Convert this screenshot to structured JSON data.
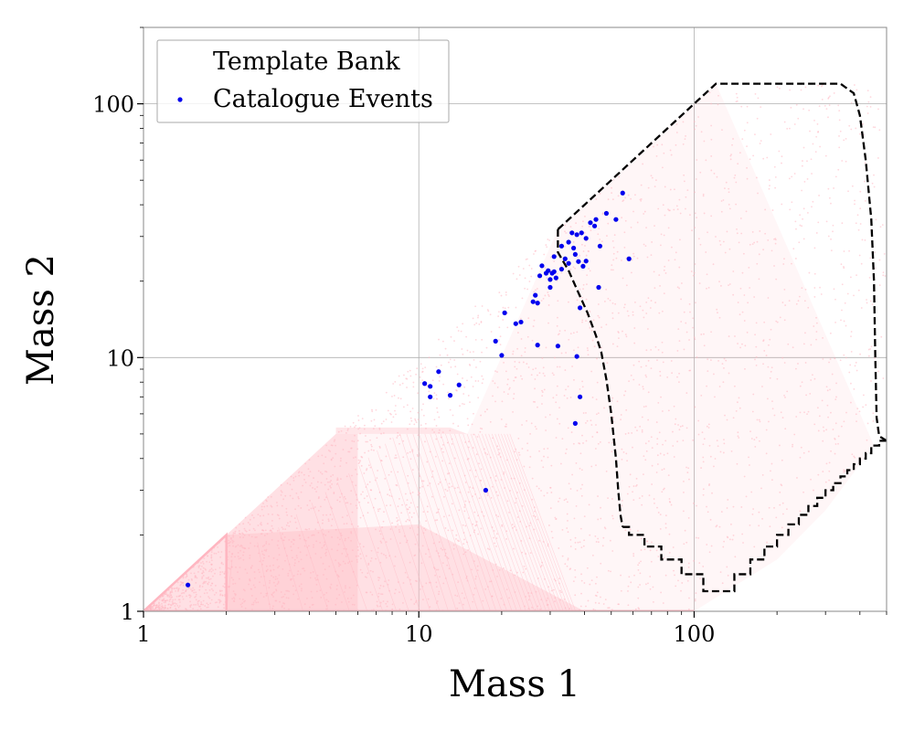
{
  "chart_data": {
    "type": "scatter",
    "xlabel": "Mass 1",
    "ylabel": "Mass 2",
    "xscale": "log",
    "yscale": "log",
    "xlim": [
      1,
      500
    ],
    "ylim": [
      1,
      200
    ],
    "xticks": [
      1,
      10,
      100
    ],
    "yticks": [
      1,
      10,
      100
    ],
    "xtick_labels": [
      "1",
      "10",
      "100"
    ],
    "ytick_labels": [
      "1",
      "10",
      "100"
    ],
    "grid": true,
    "legend_position": "top-left",
    "colors": {
      "template_bank": "#ffb6c1",
      "catalogue_events": "#0000ee",
      "boundary": "#000000"
    },
    "series": [
      {
        "name": "Template Bank",
        "style": "dense-scatter",
        "color": "#ffb6c1",
        "region_polygon": [
          [
            1,
            1
          ],
          [
            5,
            5
          ],
          [
            15,
            5
          ],
          [
            32,
            32
          ],
          [
            120,
            120
          ],
          [
            450,
            4.5
          ],
          [
            300,
            2.5
          ],
          [
            200,
            1.6
          ],
          [
            100,
            1
          ]
        ]
      },
      {
        "name": "Catalogue Events",
        "style": "points",
        "color": "#0000ee",
        "points": [
          [
            1.45,
            1.27
          ],
          [
            10.5,
            7.9
          ],
          [
            11,
            7.7
          ],
          [
            11,
            7.0
          ],
          [
            11.8,
            8.8
          ],
          [
            13,
            7.1
          ],
          [
            14,
            7.8
          ],
          [
            17.5,
            3.0
          ],
          [
            19,
            11.6
          ],
          [
            20,
            10.2
          ],
          [
            20.5,
            15.0
          ],
          [
            22.5,
            13.6
          ],
          [
            23.5,
            13.8
          ],
          [
            26,
            16.6
          ],
          [
            26.5,
            17.6
          ],
          [
            27,
            11.2
          ],
          [
            27,
            16.4
          ],
          [
            27.5,
            21
          ],
          [
            28,
            23
          ],
          [
            29,
            21.5
          ],
          [
            29.5,
            22
          ],
          [
            30,
            18.9
          ],
          [
            30,
            20.3
          ],
          [
            30.5,
            21.5
          ],
          [
            31,
            25
          ],
          [
            31,
            21.8
          ],
          [
            31.5,
            20.6
          ],
          [
            32,
            11.1
          ],
          [
            33,
            27.5
          ],
          [
            33,
            22.3
          ],
          [
            34,
            24.5
          ],
          [
            35,
            28.5
          ],
          [
            35,
            23.5
          ],
          [
            36,
            31
          ],
          [
            36.5,
            27
          ],
          [
            37,
            25.5
          ],
          [
            37,
            5.5
          ],
          [
            37.5,
            30.5
          ],
          [
            37.5,
            10.1
          ],
          [
            38,
            23.9
          ],
          [
            38.5,
            15.7
          ],
          [
            38.5,
            7.0
          ],
          [
            39,
            31
          ],
          [
            39.5,
            22.9
          ],
          [
            40.5,
            29.5
          ],
          [
            40.5,
            24
          ],
          [
            42,
            34
          ],
          [
            43.5,
            33
          ],
          [
            44,
            35
          ],
          [
            45,
            18.9
          ],
          [
            45.5,
            27.5
          ],
          [
            48,
            37
          ],
          [
            52,
            35
          ],
          [
            55,
            44.5
          ],
          [
            58,
            24.5
          ]
        ]
      },
      {
        "name": "",
        "style": "dashed-boundary",
        "color": "#000000",
        "outer": [
          [
            32,
            32
          ],
          [
            120,
            120
          ],
          [
            340,
            120
          ],
          [
            380,
            110
          ],
          [
            400,
            90
          ],
          [
            420,
            60
          ],
          [
            440,
            35
          ],
          [
            450,
            20
          ],
          [
            455,
            10
          ],
          [
            460,
            5.8
          ],
          [
            470,
            4.9
          ],
          [
            500,
            4.7
          ]
        ],
        "inner": [
          [
            32,
            32
          ],
          [
            32,
            26
          ],
          [
            35,
            22
          ],
          [
            38,
            18
          ],
          [
            41,
            15
          ],
          [
            44,
            12.2
          ],
          [
            46,
            10.5
          ],
          [
            48,
            8.2
          ],
          [
            50,
            6.0
          ],
          [
            52,
            4.0
          ],
          [
            53,
            3.0
          ],
          [
            54,
            2.4
          ],
          [
            55,
            2.15
          ]
        ],
        "stairs_lower": [
          [
            55,
            2.15
          ],
          [
            58,
            2.15
          ],
          [
            58,
            2.0
          ],
          [
            66,
            2.0
          ],
          [
            66,
            1.8
          ],
          [
            76,
            1.8
          ],
          [
            76,
            1.6
          ],
          [
            90,
            1.6
          ],
          [
            90,
            1.4
          ],
          [
            108,
            1.4
          ],
          [
            108,
            1.2
          ],
          [
            140,
            1.2
          ],
          [
            140,
            1.4
          ],
          [
            160,
            1.4
          ],
          [
            160,
            1.6
          ],
          [
            180,
            1.6
          ],
          [
            180,
            1.8
          ],
          [
            200,
            1.8
          ],
          [
            200,
            2.0
          ],
          [
            220,
            2.0
          ],
          [
            220,
            2.2
          ],
          [
            240,
            2.2
          ],
          [
            240,
            2.4
          ],
          [
            260,
            2.4
          ],
          [
            260,
            2.6
          ],
          [
            280,
            2.6
          ],
          [
            280,
            2.8
          ],
          [
            300,
            2.8
          ],
          [
            300,
            3.0
          ],
          [
            320,
            3.0
          ],
          [
            320,
            3.2
          ],
          [
            340,
            3.2
          ],
          [
            340,
            3.4
          ],
          [
            360,
            3.4
          ],
          [
            360,
            3.6
          ],
          [
            380,
            3.6
          ],
          [
            380,
            3.8
          ],
          [
            400,
            3.8
          ],
          [
            400,
            4.0
          ],
          [
            420,
            4.0
          ],
          [
            420,
            4.2
          ],
          [
            440,
            4.2
          ],
          [
            440,
            4.5
          ],
          [
            470,
            4.5
          ],
          [
            470,
            4.7
          ],
          [
            500,
            4.7
          ]
        ]
      }
    ]
  }
}
